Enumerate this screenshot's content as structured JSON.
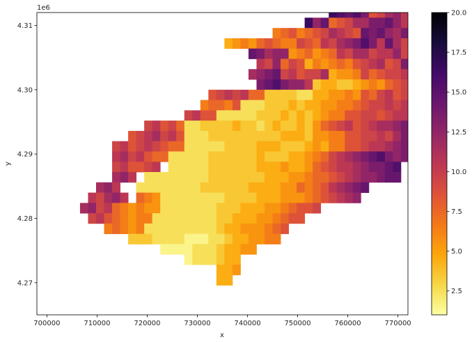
{
  "chart_data": {
    "type": "heatmap",
    "xlabel": "x",
    "ylabel": "y",
    "offset_label": "1e6",
    "xlim": [
      698000,
      772000
    ],
    "ylim": [
      4265000,
      4312000
    ],
    "x_ticks": [
      {
        "value": 700000,
        "label": "700000"
      },
      {
        "value": 710000,
        "label": "710000"
      },
      {
        "value": 720000,
        "label": "720000"
      },
      {
        "value": 730000,
        "label": "730000"
      },
      {
        "value": 740000,
        "label": "740000"
      },
      {
        "value": 750000,
        "label": "750000"
      },
      {
        "value": 760000,
        "label": "760000"
      },
      {
        "value": 770000,
        "label": "770000"
      }
    ],
    "y_ticks": [
      {
        "value": 4270000,
        "label": "4.27"
      },
      {
        "value": 4280000,
        "label": "4.28"
      },
      {
        "value": 4290000,
        "label": "4.29"
      },
      {
        "value": 4300000,
        "label": "4.30"
      },
      {
        "value": 4310000,
        "label": "4.31"
      }
    ],
    "colorbar": {
      "colormap": "inferno_r",
      "min": 1,
      "max": 20,
      "ticks": [
        {
          "value": 2.5,
          "label": "2.5"
        },
        {
          "value": 5,
          "label": "5.0"
        },
        {
          "value": 7.5,
          "label": "7.5"
        },
        {
          "value": 10,
          "label": "10.0"
        },
        {
          "value": 12.5,
          "label": "12.5"
        },
        {
          "value": 15,
          "label": "15.0"
        },
        {
          "value": 17.5,
          "label": "17.5"
        },
        {
          "value": 20,
          "label": "20.0"
        }
      ]
    },
    "cell_size": 1600,
    "grid_origin": [
      703400,
      4268000
    ],
    "rows": [
      "...........................................................",
      "...........................................................",
      "...........................................................",
      "...........................................................",
      "...........................................................",
      "...........................................................",
      "...........................................................",
      "...........................................................",
      "...........................................................",
      "...........................................................",
      "...........................................................",
      "...........................................................",
      "..................................................GMNNMLKLKJ",
      "..............................................SPGOMNNMNLKLKJI",
      ".......................................QPMNGHNPOLMNMNKLMKLKI",
      ".................................PONOMHIKLJMPONLMNMKLMN.....",
      "..............................PLNGHIKKMMNLJKIHKLJMLLK....",
      "..........................FGHFGHIKJIHNMNLKMNJKIMONM....",
      "....................DEFEGHGFFIHGJIKLMOMJNKIJKLNNO...",
      ".......................NMKLLEFGEFGJIKKIJJLIHJKLKM....",
      "........................JILGIHDFEFGFHIJKHIMJLKKNNNM....",
      ".......................KLMNIJHIIKDEEFIGHIIJKLLNMMLN...",
      "........................MNOMLLJCDDCCDEFEGHIHJJKKLLMNK....",
      "..................HIJIJGGCCCCBBDDEEFEHGIJHIJKKLLMN..OM",
      ".................FGGFHBBBCCCDCDDEEFFGHIIJIJKLMMMM.MN",
      "...............IJHHBBBBBCCCDCDCDEFFHHIIHIJJKLMNM....",
      "..........IJHIGBBCCCCDCCBCDCCDCEGHIJHIJKKLMNL....",
      "........HIJKIJHBBBCCCCCCCCCDDDCEEFFHHIIJIKMLMK.....",
      "......IJHIJIHGGBBBBBCCCCDDDCCCDEDFFHHIJJKLMMLK.....",
      "......JKIJHGGBBBBBCCCCCCDCCCDDEFGIJKLMNOMLMN......",
      "......IJHHIJ.BBBBBCCCCCCDDDEDDEGHIJJKLMMNO.....",
      "......KLJ.BBBBBBBBCCCCCCCDDDEEFGGHIJKLLMNN.....",
      "....KLJ..BBBBBBBBCCCCCCDDDDEEGFGHJKLMN.......",
      "...JIKLJ.GFEBBBBBBBBCCCCDDDEEEFGHIJKL.......",
      "..KLIJGFEFEEBBBBBBBCCCDDDEEFGHHI...........",
      "...IJHGFEFFBBBBBBBBCCDDDEEFGHH.............",
      ".....FGFEFBBBBBBBBBCDDEEEFGH...............",
      "........CCCBBBBAAABBCDDEEFF................",
      "............AAAABBBCDDEE...................",
      "...............ABBBCDD.....................",
      "...................DDE.....................",
      "...................DD......................",
      "..........................................."
    ],
    "levels": {
      "A": 1.5,
      "B": 2.5,
      "C": 3.5,
      "D": 4.5,
      "E": 5.5,
      "F": 6.5,
      "G": 7.5,
      "H": 8.5,
      "I": 9.5,
      "J": 10.5,
      "K": 11.5,
      "L": 12.5,
      "M": 13.5,
      "N": 14.5,
      "O": 15.5,
      "P": 16.5,
      "Q": 17.5,
      "R": 18.5,
      "S": 19.5
    }
  }
}
